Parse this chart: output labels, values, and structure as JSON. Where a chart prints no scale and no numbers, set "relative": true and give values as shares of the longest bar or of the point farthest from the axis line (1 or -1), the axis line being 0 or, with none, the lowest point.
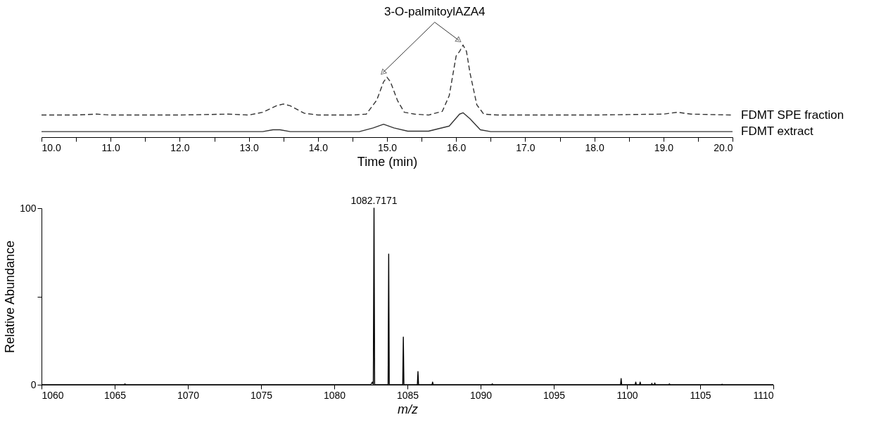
{
  "chart_data": [
    {
      "type": "line",
      "relative": true,
      "xlabel": "Time (min)",
      "xlim": [
        10,
        20
      ],
      "xticks": [
        {
          "value": 10,
          "label": "10.0"
        },
        {
          "value": 10.5,
          "label": null
        },
        {
          "value": 11,
          "label": "11.0"
        },
        {
          "value": 11.5,
          "label": null
        },
        {
          "value": 12,
          "label": "12.0"
        },
        {
          "value": 12.5,
          "label": null
        },
        {
          "value": 13,
          "label": "13.0"
        },
        {
          "value": 13.5,
          "label": null
        },
        {
          "value": 14,
          "label": "14.0"
        },
        {
          "value": 14.5,
          "label": null
        },
        {
          "value": 15,
          "label": "15.0"
        },
        {
          "value": 15.5,
          "label": null
        },
        {
          "value": 16,
          "label": "16.0"
        },
        {
          "value": 16.5,
          "label": null
        },
        {
          "value": 17,
          "label": "17.0"
        },
        {
          "value": 17.5,
          "label": null
        },
        {
          "value": 18,
          "label": "18.0"
        },
        {
          "value": 18.5,
          "label": null
        },
        {
          "value": 19,
          "label": "19.0"
        },
        {
          "value": 19.5,
          "label": null
        },
        {
          "value": 20,
          "label": "20.0"
        }
      ],
      "series": [
        {
          "name": "FDMT SPE fraction",
          "color": "#333333",
          "line_style": "dashed",
          "x": [
            10.0,
            10.5,
            10.8,
            11.0,
            12.0,
            12.7,
            13.0,
            13.2,
            13.4,
            13.5,
            13.6,
            13.8,
            14.0,
            14.5,
            14.7,
            14.85,
            14.95,
            15.0,
            15.05,
            15.15,
            15.25,
            15.4,
            15.6,
            15.8,
            15.9,
            16.0,
            16.05,
            16.1,
            16.15,
            16.2,
            16.3,
            16.4,
            16.6,
            17.0,
            18.0,
            18.5,
            19.0,
            19.2,
            19.4,
            20.0
          ],
          "values": [
            0.24,
            0.24,
            0.25,
            0.24,
            0.24,
            0.25,
            0.24,
            0.27,
            0.34,
            0.36,
            0.34,
            0.26,
            0.24,
            0.24,
            0.25,
            0.4,
            0.6,
            0.65,
            0.6,
            0.4,
            0.27,
            0.25,
            0.24,
            0.28,
            0.45,
            0.88,
            0.93,
            1.0,
            0.93,
            0.7,
            0.35,
            0.25,
            0.24,
            0.24,
            0.24,
            0.245,
            0.25,
            0.27,
            0.25,
            0.24
          ]
        },
        {
          "name": "FDMT extract",
          "color": "#333333",
          "line_style": "solid",
          "x": [
            10.0,
            13.2,
            13.35,
            13.45,
            13.6,
            14.6,
            14.8,
            14.95,
            15.1,
            15.3,
            15.6,
            15.9,
            16.05,
            16.1,
            16.2,
            16.35,
            16.5,
            20.0
          ],
          "values": [
            0.06,
            0.06,
            0.08,
            0.08,
            0.06,
            0.06,
            0.1,
            0.14,
            0.1,
            0.065,
            0.065,
            0.12,
            0.25,
            0.265,
            0.2,
            0.08,
            0.06,
            0.06
          ]
        }
      ],
      "annotations": [
        "3-O-palmitoylAZA4"
      ]
    },
    {
      "type": "line",
      "xlabel": "m/z",
      "ylabel": "Relative Abundance",
      "xlim": [
        1060,
        1110
      ],
      "xticks": [
        1060,
        1065,
        1070,
        1075,
        1080,
        1085,
        1090,
        1095,
        1100,
        1105,
        1110
      ],
      "ylim": [
        0,
        100
      ],
      "yticks": [
        0,
        {
          "value": 50,
          "label": null
        },
        100
      ],
      "series": [
        {
          "color": "#000000",
          "x": [
            1060,
            1065.65,
            1065.7,
            1065.75,
            1082.5,
            1082.6,
            1082.67,
            1082.7171,
            1082.76,
            1083.68,
            1083.72,
            1083.76,
            1084.68,
            1084.72,
            1084.76,
            1085.68,
            1085.72,
            1085.76,
            1086.68,
            1086.72,
            1086.76,
            1090.76,
            1090.8,
            1090.84,
            1099.56,
            1099.6,
            1099.64,
            1100.56,
            1100.6,
            1100.64,
            1100.86,
            1100.9,
            1100.94,
            1101.66,
            1101.7,
            1101.74,
            1101.86,
            1101.9,
            1101.94,
            1102.86,
            1102.9,
            1102.94,
            1106.46,
            1106.5,
            1106.54,
            1110
          ],
          "values": [
            0,
            0,
            0.5,
            0,
            0,
            1.5,
            0,
            100,
            0,
            0,
            74,
            0,
            0,
            27,
            0,
            0,
            7.5,
            0,
            0,
            1.5,
            0,
            0,
            0.5,
            0,
            0,
            3.5,
            0,
            0,
            1.5,
            0,
            0,
            1.5,
            0,
            0,
            0.8,
            0,
            0,
            1,
            0,
            0,
            0.5,
            0,
            0,
            0.3,
            0,
            0
          ]
        }
      ],
      "annotations": [
        {
          "text": "1082.7171",
          "x": 1082.7171,
          "y": 100
        }
      ]
    }
  ]
}
